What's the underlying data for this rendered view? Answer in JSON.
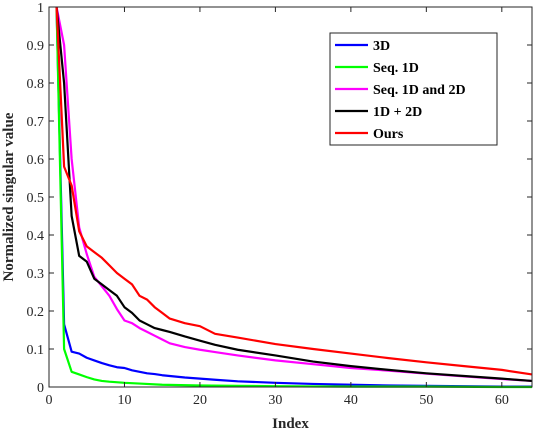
{
  "chart_data": {
    "type": "line",
    "xlabel": "Index",
    "ylabel": "Normalized singular value",
    "xlim": [
      0,
      64
    ],
    "ylim": [
      0,
      1
    ],
    "xticks": [
      0,
      10,
      20,
      30,
      40,
      50,
      60
    ],
    "xtick_labels": [
      "0",
      "10",
      "20",
      "30",
      "40",
      "50",
      "60"
    ],
    "yticks": [
      0,
      0.1,
      0.2,
      0.3,
      0.4,
      0.5,
      0.6,
      0.7,
      0.8,
      0.9,
      1
    ],
    "ytick_labels": [
      "0",
      "0.1",
      "0.2",
      "0.3",
      "0.4",
      "0.5",
      "0.6",
      "0.7",
      "0.8",
      "0.9",
      "1"
    ],
    "grid": false,
    "legend_position": "top-right",
    "series": [
      {
        "name": "3D",
        "color": "#0000ff",
        "x": [
          1,
          2,
          3,
          4,
          5,
          6,
          7,
          8,
          9,
          10,
          11,
          12,
          13,
          14,
          15,
          16,
          18,
          20,
          22,
          25,
          30,
          35,
          40,
          45,
          50,
          55,
          60,
          64
        ],
        "y": [
          1,
          0.165,
          0.093,
          0.088,
          0.077,
          0.07,
          0.063,
          0.057,
          0.052,
          0.05,
          0.044,
          0.04,
          0.036,
          0.034,
          0.031,
          0.029,
          0.025,
          0.022,
          0.019,
          0.015,
          0.011,
          0.008,
          0.006,
          0.004,
          0.003,
          0.002,
          0.001,
          0.001
        ]
      },
      {
        "name": "Seq. 1D",
        "color": "#00ff00",
        "x": [
          1,
          2,
          3,
          4,
          5,
          6,
          7,
          8,
          10,
          12,
          15,
          20,
          25,
          30,
          40,
          50,
          60,
          64
        ],
        "y": [
          1,
          0.1,
          0.04,
          0.033,
          0.026,
          0.02,
          0.016,
          0.014,
          0.011,
          0.009,
          0.006,
          0.004,
          0.003,
          0.002,
          0.001,
          0.001,
          0.0,
          0.0
        ]
      },
      {
        "name": "Seq. 1D and 2D",
        "color": "#ff00ff",
        "x": [
          1,
          2,
          3,
          4,
          5,
          6,
          7,
          8,
          9,
          10,
          11,
          12,
          13,
          14,
          15,
          16,
          18,
          20,
          22,
          25,
          30,
          35,
          40,
          45,
          50,
          55,
          60,
          64
        ],
        "y": [
          1,
          0.9,
          0.6,
          0.42,
          0.35,
          0.29,
          0.265,
          0.24,
          0.205,
          0.175,
          0.168,
          0.155,
          0.145,
          0.135,
          0.125,
          0.115,
          0.105,
          0.098,
          0.092,
          0.083,
          0.07,
          0.06,
          0.05,
          0.043,
          0.035,
          0.028,
          0.021,
          0.016
        ]
      },
      {
        "name": "1D + 2D",
        "color": "#000000",
        "x": [
          1,
          2,
          3,
          4,
          5,
          6,
          7,
          8,
          9,
          10,
          11,
          12,
          13,
          14,
          15,
          16,
          18,
          20,
          22,
          25,
          30,
          35,
          40,
          45,
          50,
          55,
          60,
          64
        ],
        "y": [
          1,
          0.8,
          0.45,
          0.345,
          0.33,
          0.285,
          0.27,
          0.255,
          0.24,
          0.21,
          0.195,
          0.175,
          0.165,
          0.155,
          0.15,
          0.145,
          0.133,
          0.122,
          0.111,
          0.098,
          0.083,
          0.067,
          0.055,
          0.045,
          0.036,
          0.029,
          0.022,
          0.016
        ]
      },
      {
        "name": "Ours",
        "color": "#ff0000",
        "x": [
          1,
          2,
          3,
          4,
          5,
          6,
          7,
          8,
          9,
          10,
          11,
          12,
          13,
          14,
          15,
          16,
          18,
          20,
          22,
          25,
          30,
          35,
          40,
          45,
          50,
          55,
          60,
          64
        ],
        "y": [
          1,
          0.58,
          0.53,
          0.41,
          0.37,
          0.355,
          0.34,
          0.32,
          0.3,
          0.285,
          0.27,
          0.24,
          0.23,
          0.21,
          0.195,
          0.18,
          0.168,
          0.16,
          0.14,
          0.13,
          0.113,
          0.1,
          0.088,
          0.076,
          0.065,
          0.055,
          0.045,
          0.033
        ]
      }
    ]
  }
}
